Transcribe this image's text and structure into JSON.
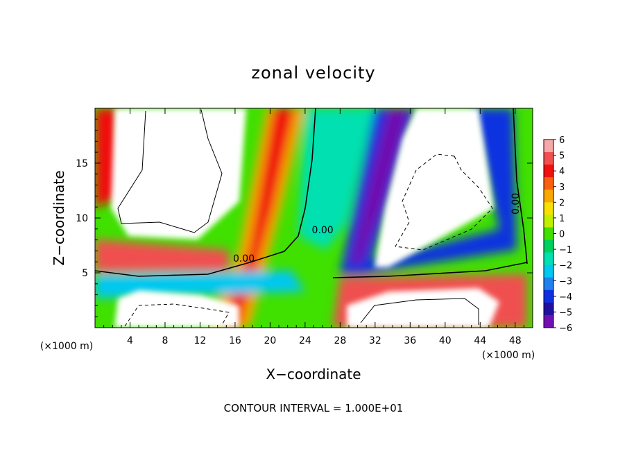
{
  "chart_data": {
    "type": "heatmap",
    "title": "zonal velocity",
    "xlabel": "X−coordinate",
    "ylabel": "Z−coordinate",
    "x_unit_left": "(×1000 m)",
    "x_unit_right": "(×1000 m)",
    "footer": "CONTOUR INTERVAL = 1.000E+01",
    "xlim": [
      0,
      50
    ],
    "ylim": [
      0,
      20
    ],
    "x_ticks": [
      4,
      8,
      12,
      16,
      20,
      24,
      28,
      32,
      36,
      40,
      44,
      48
    ],
    "x_tick_labels": [
      "4",
      "8",
      "12",
      "16",
      "20",
      "24",
      "28",
      "32",
      "36",
      "40",
      "44",
      "48"
    ],
    "y_ticks": [
      5,
      10,
      15
    ],
    "y_tick_labels": [
      "5",
      "10",
      "15"
    ],
    "colorbar": {
      "range": [
        -6,
        6
      ],
      "ticks": [
        6,
        5,
        4,
        3,
        2,
        1,
        0,
        -1,
        -2,
        -3,
        -4,
        -5,
        -6
      ],
      "tick_labels": [
        "6",
        "5",
        "4",
        "3",
        "2",
        "1",
        "0",
        "−1",
        "−2",
        "−3",
        "−4",
        "−5",
        "−6"
      ],
      "colors": [
        "#f7a8a8",
        "#f05050",
        "#f01010",
        "#f86010",
        "#f8a800",
        "#f8e000",
        "#c0f000",
        "#40e000",
        "#00d060",
        "#00e0b0",
        "#00c8f0",
        "#2080f0",
        "#1030e0",
        "#2010a0",
        "#7010b0"
      ]
    },
    "contour_labels": [
      {
        "text": "0.00",
        "x": 26.0,
        "y": 8.6
      },
      {
        "text": "0.00",
        "x": 17.0,
        "y": 6.0
      },
      {
        "text": "0.00",
        "x": 48.4,
        "y": 11.3
      }
    ],
    "field_features": [
      {
        "kind": "positive_band",
        "value": 5,
        "desc": "tilted red/orange jet from surface near x=16 rising to top near x=21"
      },
      {
        "kind": "positive_band",
        "value": 4,
        "desc": "red layer near z=6 from x=0 to x=20"
      },
      {
        "kind": "negative_core",
        "value": -6,
        "desc": "deep blue/purple jet from x=29 top descending to z=5 near x=33"
      },
      {
        "kind": "negative_core",
        "value": -5,
        "desc": "blue band near x=44-48 descending into low-level jet"
      },
      {
        "kind": "saturated_high",
        "value": 6,
        "desc": "white region upper-left x=2-14, z=9-20"
      },
      {
        "kind": "saturated_low",
        "value": -6,
        "desc": "white region upper-right x=31-45, z=5-20"
      },
      {
        "kind": "saturated_high",
        "value": 6,
        "desc": "white regions near surface x=2-17 and x=29-46"
      }
    ]
  }
}
